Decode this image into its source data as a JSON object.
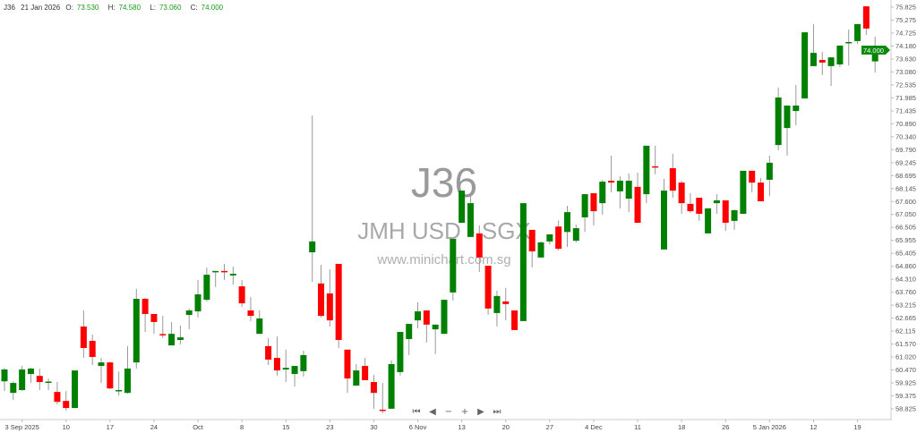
{
  "header": {
    "symbol": "J36",
    "date": "21 Jan 2026",
    "open_label": "O:",
    "open": "73.530",
    "high_label": "H:",
    "high": "74.580",
    "low_label": "L:",
    "low": "73.060",
    "close_label": "C:",
    "close": "74.000"
  },
  "watermark": {
    "code": "J36",
    "name": "JMH USD - SGX",
    "site": "www.minichart.com.sg"
  },
  "price_tag": "74.000",
  "colors": {
    "up": "#008000",
    "down": "#ff0000",
    "wick": "#999999",
    "tag": "#0b8a0b"
  },
  "nav_icons": [
    "first-icon",
    "prev-icon",
    "zoom-out-icon",
    "zoom-in-icon",
    "next-icon",
    "last-icon"
  ],
  "chart_data": {
    "type": "candlestick",
    "title": "",
    "ylim": [
      58.825,
      75.825
    ],
    "grid": false,
    "y_ticks": [
      "75.825",
      "75.275",
      "74.725",
      "74.180",
      "73.630",
      "73.080",
      "72.535",
      "71.985",
      "71.435",
      "70.890",
      "70.340",
      "69.790",
      "69.245",
      "68.695",
      "68.145",
      "67.600",
      "67.050",
      "66.505",
      "65.955",
      "65.405",
      "64.860",
      "64.310",
      "63.760",
      "63.215",
      "62.665",
      "62.115",
      "61.570",
      "61.020",
      "60.470",
      "59.925",
      "59.375",
      "58.825"
    ],
    "x_ticks": [
      {
        "label": "3 Sep 2025",
        "index": 2
      },
      {
        "label": "10",
        "index": 7
      },
      {
        "label": "17",
        "index": 12
      },
      {
        "label": "24",
        "index": 17
      },
      {
        "label": "Oct",
        "index": 22
      },
      {
        "label": "8",
        "index": 27
      },
      {
        "label": "15",
        "index": 32
      },
      {
        "label": "23",
        "index": 37
      },
      {
        "label": "30",
        "index": 42
      },
      {
        "label": "6 Nov",
        "index": 47
      },
      {
        "label": "13",
        "index": 52
      },
      {
        "label": "20",
        "index": 57
      },
      {
        "label": "27",
        "index": 62
      },
      {
        "label": "4 Dec",
        "index": 67
      },
      {
        "label": "11",
        "index": 72
      },
      {
        "label": "18",
        "index": 77
      },
      {
        "label": "26",
        "index": 82
      },
      {
        "label": "5 Jan 2026",
        "index": 87
      },
      {
        "label": "12",
        "index": 92
      },
      {
        "label": "19",
        "index": 97
      }
    ],
    "ohlc": [
      [
        59.99,
        60.56,
        59.58,
        60.49
      ],
      [
        59.5,
        59.99,
        59.2,
        59.92
      ],
      [
        59.62,
        60.64,
        59.58,
        60.49
      ],
      [
        60.3,
        60.56,
        59.92,
        60.53
      ],
      [
        60.22,
        60.53,
        59.62,
        59.96
      ],
      [
        59.96,
        60.11,
        59.62,
        59.98
      ],
      [
        59.54,
        59.96,
        59.01,
        59.12
      ],
      [
        59.16,
        59.58,
        58.75,
        58.86
      ],
      [
        58.86,
        60.45,
        58.86,
        60.45
      ],
      [
        62.31,
        62.99,
        60.98,
        61.4
      ],
      [
        61.7,
        61.97,
        60.68,
        61.02
      ],
      [
        60.64,
        60.98,
        59.92,
        60.79
      ],
      [
        60.79,
        60.82,
        59.66,
        59.69
      ],
      [
        59.58,
        60.4,
        59.38,
        59.62
      ],
      [
        59.5,
        61.48,
        59.46,
        60.53
      ],
      [
        60.79,
        63.9,
        60.53,
        63.48
      ],
      [
        63.48,
        63.52,
        62.08,
        62.84
      ],
      [
        62.84,
        62.84,
        62.0,
        62.5
      ],
      [
        61.99,
        62.76,
        61.82,
        61.95
      ],
      [
        61.51,
        62.5,
        61.51,
        62.0
      ],
      [
        61.74,
        62.35,
        61.55,
        61.85
      ],
      [
        62.8,
        63.07,
        62.19,
        62.99
      ],
      [
        62.95,
        64.28,
        62.69,
        63.67
      ],
      [
        63.44,
        64.8,
        63.37,
        64.5
      ],
      [
        64.62,
        64.66,
        63.98,
        64.66
      ],
      [
        64.66,
        64.96,
        64.28,
        64.62
      ],
      [
        64.47,
        64.85,
        64.09,
        64.54
      ],
      [
        64.01,
        64.28,
        63.14,
        63.29
      ],
      [
        62.99,
        63.56,
        62.54,
        62.76
      ],
      [
        62.0,
        62.99,
        62.0,
        62.65
      ],
      [
        61.48,
        61.82,
        60.68,
        60.91
      ],
      [
        60.98,
        61.89,
        60.23,
        60.45
      ],
      [
        60.49,
        61.33,
        59.96,
        60.56
      ],
      [
        60.3,
        60.64,
        59.77,
        60.64
      ],
      [
        60.42,
        61.29,
        60.19,
        61.1
      ],
      [
        65.45,
        71.24,
        64.2,
        65.91
      ],
      [
        64.13,
        64.92,
        62.69,
        62.76
      ],
      [
        63.71,
        64.73,
        62.31,
        62.57
      ],
      [
        64.96,
        64.96,
        61.4,
        61.74
      ],
      [
        61.33,
        61.33,
        59.5,
        60.11
      ],
      [
        59.81,
        60.72,
        59.81,
        60.45
      ],
      [
        60.64,
        60.98,
        60.04,
        60.04
      ],
      [
        59.96,
        60.26,
        58.83,
        59.5
      ],
      [
        58.79,
        59.92,
        58.64,
        58.75
      ],
      [
        58.83,
        60.87,
        58.83,
        60.72
      ],
      [
        60.38,
        62.08,
        60.23,
        62.08
      ],
      [
        61.78,
        62.42,
        61.1,
        62.42
      ],
      [
        62.57,
        63.33,
        62.23,
        62.95
      ],
      [
        62.99,
        62.99,
        61.63,
        62.39
      ],
      [
        62.19,
        62.39,
        61.14,
        62.39
      ],
      [
        62.0,
        63.44,
        62.0,
        63.44
      ],
      [
        63.75,
        66.02,
        63.41,
        66.02
      ],
      [
        66.7,
        68.06,
        66.7,
        68.06
      ],
      [
        66.1,
        67.87,
        66.1,
        67.53
      ],
      [
        66.25,
        66.59,
        64.62,
        65.23
      ],
      [
        64.88,
        64.88,
        62.8,
        63.07
      ],
      [
        62.88,
        63.82,
        62.31,
        63.6
      ],
      [
        63.37,
        63.94,
        62.57,
        63.26
      ],
      [
        62.99,
        62.99,
        62.16,
        62.16
      ],
      [
        62.54,
        67.53,
        62.54,
        67.53
      ],
      [
        66.4,
        66.4,
        64.81,
        65.49
      ],
      [
        65.23,
        65.91,
        65.23,
        65.87
      ],
      [
        65.91,
        66.21,
        65.78,
        66.21
      ],
      [
        66.54,
        66.8,
        65.53,
        65.6
      ],
      [
        66.31,
        67.42,
        65.68,
        67.15
      ],
      [
        65.94,
        66.62,
        65.87,
        66.47
      ],
      [
        66.93,
        67.91,
        66.31,
        67.91
      ],
      [
        67.95,
        67.95,
        66.59,
        67.19
      ],
      [
        67.53,
        68.51,
        67.04,
        68.44
      ],
      [
        68.48,
        69.54,
        67.99,
        68.4
      ],
      [
        68.03,
        68.67,
        67.31,
        68.48
      ],
      [
        67.72,
        68.78,
        67.15,
        68.48
      ],
      [
        68.22,
        68.82,
        66.7,
        66.7
      ],
      [
        67.91,
        69.96,
        67.53,
        69.96
      ],
      [
        69.09,
        69.96,
        68.75,
        69.05
      ],
      [
        65.57,
        68.56,
        65.57,
        68.06
      ],
      [
        69.01,
        69.62,
        67.76,
        68.06
      ],
      [
        68.4,
        68.48,
        67.08,
        67.53
      ],
      [
        67.5,
        67.95,
        67.12,
        67.19
      ],
      [
        67.76,
        67.76,
        66.78,
        67.08
      ],
      [
        66.25,
        67.31,
        66.25,
        67.31
      ],
      [
        67.53,
        67.91,
        67.08,
        67.65
      ],
      [
        67.65,
        67.65,
        66.36,
        66.7
      ],
      [
        66.78,
        67.27,
        66.4,
        67.23
      ],
      [
        67.08,
        68.9,
        67.08,
        68.9
      ],
      [
        68.9,
        68.9,
        67.99,
        68.4
      ],
      [
        68.4,
        68.59,
        67.61,
        67.61
      ],
      [
        68.52,
        69.54,
        67.84,
        69.24
      ],
      [
        69.99,
        72.42,
        69.77,
        72.0
      ],
      [
        70.71,
        71.66,
        69.54,
        71.66
      ],
      [
        71.43,
        72.53,
        70.83,
        71.66
      ],
      [
        71.96,
        74.76,
        71.96,
        74.76
      ],
      [
        73.33,
        75.11,
        73.33,
        73.89
      ],
      [
        73.59,
        73.93,
        72.95,
        73.48
      ],
      [
        73.33,
        73.7,
        72.49,
        73.7
      ],
      [
        73.4,
        74.2,
        73.29,
        74.2
      ],
      [
        74.31,
        74.88,
        73.36,
        74.35
      ],
      [
        74.39,
        75.11,
        74.27,
        75.11
      ],
      [
        75.86,
        75.86,
        74.65,
        74.92
      ],
      [
        73.53,
        74.58,
        73.06,
        74.0
      ]
    ]
  }
}
